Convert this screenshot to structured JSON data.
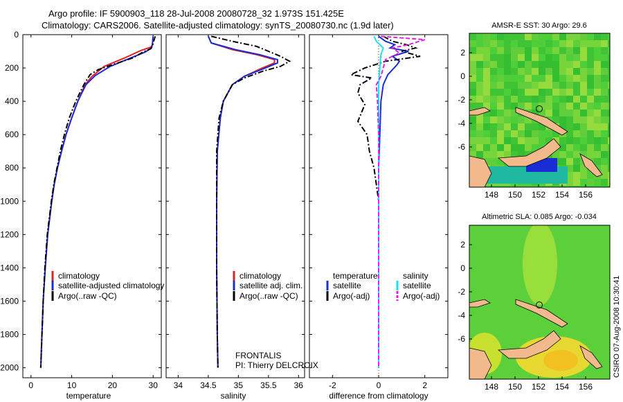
{
  "header": {
    "line1": "Argo profile: IF 5900903_118 28-Jul-2008 20080728_32 1.973S 151.425E",
    "line2": "Climatology: CARS2006. Satellite-adjusted climatology: synTS_20080730.nc (1.9d later)"
  },
  "footer": {
    "stamp": "CSIRO 07-Aug-2008 10:30:41"
  },
  "colors": {
    "climatology": "#e02020",
    "satellite": "#1a2cd6",
    "argo": "#000000",
    "sal_satellite": "#1ee0ee",
    "sal_argo": "#e020e0",
    "ocean": "#33cc33",
    "land": "#f2b98c"
  },
  "chart_data": [
    {
      "id": "temperature",
      "type": "line",
      "xlabel": "temperature",
      "ylabel": "",
      "xlim": [
        -2,
        32
      ],
      "ylim": [
        2060,
        0
      ],
      "xticks": [
        0,
        10,
        20,
        30
      ],
      "yticks": [
        0,
        200,
        400,
        600,
        800,
        1000,
        1200,
        1400,
        1600,
        1800,
        2000
      ],
      "series": [
        {
          "name": "climatology",
          "style": "solid",
          "color": "#e02020",
          "points": [
            [
              30,
              10
            ],
            [
              29.8,
              60
            ],
            [
              29.5,
              75
            ],
            [
              27,
              95
            ],
            [
              23,
              140
            ],
            [
              18,
              190
            ],
            [
              15,
              250
            ],
            [
              13.3,
              300
            ],
            [
              11.5,
              400
            ],
            [
              10,
              500
            ],
            [
              8.6,
              600
            ],
            [
              7.5,
              700
            ],
            [
              6.5,
              800
            ],
            [
              5.7,
              900
            ],
            [
              5.1,
              1000
            ],
            [
              4.1,
              1200
            ],
            [
              3.5,
              1400
            ],
            [
              3.0,
              1600
            ],
            [
              2.7,
              1800
            ],
            [
              2.4,
              2000
            ]
          ]
        },
        {
          "name": "satellite-adjusted climatology",
          "style": "solid",
          "color": "#1a2cd6",
          "points": [
            [
              30,
              10
            ],
            [
              29.8,
              60
            ],
            [
              29.6,
              80
            ],
            [
              28,
              105
            ],
            [
              24.5,
              140
            ],
            [
              19.5,
              190
            ],
            [
              15.8,
              245
            ],
            [
              13.5,
              300
            ],
            [
              11.5,
              400
            ],
            [
              10,
              500
            ],
            [
              8.6,
              600
            ],
            [
              7.5,
              700
            ],
            [
              6.5,
              800
            ],
            [
              5.7,
              900
            ],
            [
              5.1,
              1000
            ],
            [
              4.1,
              1200
            ],
            [
              3.5,
              1400
            ],
            [
              3.0,
              1600
            ],
            [
              2.7,
              1800
            ],
            [
              2.4,
              2000
            ]
          ]
        },
        {
          "name": "Argo(..raw -QC)",
          "style": "dashdot",
          "color": "#000000",
          "points": [
            [
              30.5,
              10
            ],
            [
              29.9,
              60
            ],
            [
              29.4,
              85
            ],
            [
              27.5,
              105
            ],
            [
              25,
              140
            ],
            [
              20,
              180
            ],
            [
              16.5,
              210
            ],
            [
              14.5,
              240
            ],
            [
              13,
              300
            ],
            [
              11,
              400
            ],
            [
              9.4,
              500
            ],
            [
              8.2,
              600
            ],
            [
              7.2,
              700
            ],
            [
              6.4,
              800
            ],
            [
              5.6,
              900
            ],
            [
              5.0,
              1000
            ],
            [
              4.0,
              1200
            ],
            [
              3.4,
              1400
            ],
            [
              3.0,
              1600
            ],
            [
              2.7,
              1800
            ],
            [
              2.4,
              2000
            ]
          ]
        }
      ],
      "legend": {
        "position": "lower-right",
        "labels": [
          "climatology",
          "satellite-adjusted climatology",
          "Argo(..raw -QC)"
        ]
      }
    },
    {
      "id": "salinity",
      "type": "line",
      "xlabel": "salinity",
      "xlim": [
        33.8,
        36.1
      ],
      "ylim": [
        2060,
        0
      ],
      "xticks": [
        34,
        34.5,
        35,
        35.5,
        36
      ],
      "series": [
        {
          "name": "climatology",
          "style": "solid",
          "color": "#e02020",
          "points": [
            [
              34.5,
              10
            ],
            [
              34.55,
              50
            ],
            [
              34.9,
              90
            ],
            [
              35.3,
              120
            ],
            [
              35.6,
              150
            ],
            [
              35.6,
              170
            ],
            [
              35.4,
              200
            ],
            [
              35.1,
              250
            ],
            [
              34.9,
              300
            ],
            [
              34.75,
              400
            ],
            [
              34.7,
              500
            ],
            [
              34.65,
              700
            ],
            [
              34.64,
              1000
            ],
            [
              34.64,
              1400
            ],
            [
              34.65,
              1800
            ],
            [
              34.66,
              2000
            ]
          ]
        },
        {
          "name": "satellite adj. clim.",
          "style": "solid",
          "color": "#1a2cd6",
          "points": [
            [
              34.5,
              10
            ],
            [
              34.55,
              50
            ],
            [
              34.95,
              90
            ],
            [
              35.35,
              120
            ],
            [
              35.65,
              150
            ],
            [
              35.65,
              170
            ],
            [
              35.45,
              200
            ],
            [
              35.1,
              250
            ],
            [
              34.9,
              300
            ],
            [
              34.75,
              400
            ],
            [
              34.7,
              500
            ],
            [
              34.65,
              700
            ],
            [
              34.64,
              1000
            ],
            [
              34.64,
              1400
            ],
            [
              34.65,
              1800
            ],
            [
              34.66,
              2000
            ]
          ]
        },
        {
          "name": "Argo(..raw -QC)",
          "style": "dashdot",
          "color": "#000000",
          "points": [
            [
              34.55,
              10
            ],
            [
              34.9,
              40
            ],
            [
              35.3,
              70
            ],
            [
              35.5,
              100
            ],
            [
              35.7,
              130
            ],
            [
              35.85,
              160
            ],
            [
              35.7,
              190
            ],
            [
              35.4,
              220
            ],
            [
              35.1,
              260
            ],
            [
              34.9,
              300
            ],
            [
              34.75,
              400
            ],
            [
              34.68,
              500
            ],
            [
              34.64,
              700
            ],
            [
              34.64,
              1000
            ],
            [
              34.64,
              1400
            ],
            [
              34.65,
              1800
            ],
            [
              34.66,
              2000
            ]
          ]
        }
      ],
      "legend": {
        "position": "lower-right",
        "labels": [
          "climatology",
          "satellite adj. clim.",
          "Argo(..raw -QC)"
        ]
      },
      "annotations": [
        "FRONTALIS",
        "PI: Thierry DELCROIX"
      ]
    },
    {
      "id": "difference",
      "type": "line",
      "xlabel": "difference from climatology",
      "xlim": [
        -3,
        3
      ],
      "ylim": [
        2060,
        0
      ],
      "xticks": [
        -2,
        0,
        2
      ],
      "series": [
        {
          "name": "temperature satellite",
          "style": "solid",
          "color": "#1a2cd6",
          "points": [
            [
              0,
              10
            ],
            [
              0.3,
              40
            ],
            [
              0.7,
              60
            ],
            [
              0.5,
              80
            ],
            [
              1.3,
              100
            ],
            [
              0.6,
              130
            ],
            [
              0.9,
              160
            ],
            [
              0.8,
              180
            ],
            [
              0.4,
              240
            ],
            [
              0.2,
              300
            ],
            [
              0.1,
              400
            ],
            [
              0.05,
              600
            ],
            [
              0,
              800
            ],
            [
              0,
              1000
            ],
            [
              0,
              1400
            ],
            [
              0,
              2000
            ]
          ]
        },
        {
          "name": "temperature Argo(-adj)",
          "style": "dashdot",
          "color": "#000000",
          "points": [
            [
              0.2,
              10
            ],
            [
              0.6,
              40
            ],
            [
              1.2,
              60
            ],
            [
              1.6,
              80
            ],
            [
              1.0,
              100
            ],
            [
              1.8,
              130
            ],
            [
              0.3,
              160
            ],
            [
              -0.6,
              200
            ],
            [
              -1.2,
              240
            ],
            [
              -0.3,
              260
            ],
            [
              -0.8,
              300
            ],
            [
              -0.9,
              350
            ],
            [
              -0.6,
              420
            ],
            [
              -0.9,
              520
            ],
            [
              -0.5,
              600
            ],
            [
              -0.4,
              700
            ],
            [
              -0.2,
              800
            ],
            [
              -0.1,
              900
            ],
            [
              0,
              1000
            ],
            [
              0,
              1400
            ],
            [
              0,
              2000
            ]
          ]
        },
        {
          "name": "salinity satellite",
          "style": "solid",
          "color": "#1ee0ee",
          "points": [
            [
              -0.2,
              10
            ],
            [
              -0.1,
              40
            ],
            [
              0.2,
              80
            ],
            [
              0.1,
              120
            ],
            [
              0.05,
              200
            ],
            [
              0,
              300
            ],
            [
              0,
              500
            ],
            [
              0,
              1000
            ],
            [
              0,
              1400
            ],
            [
              0,
              2000
            ]
          ]
        },
        {
          "name": "salinity Argo(-adj)",
          "style": "dashed",
          "color": "#e020e0",
          "points": [
            [
              0.1,
              10
            ],
            [
              2.0,
              30
            ],
            [
              1.3,
              60
            ],
            [
              0.6,
              80
            ],
            [
              0.9,
              110
            ],
            [
              0.3,
              150
            ],
            [
              0.1,
              250
            ],
            [
              -0.1,
              300
            ],
            [
              -0.05,
              400
            ],
            [
              0,
              600
            ],
            [
              0,
              1000
            ],
            [
              0,
              1400
            ],
            [
              0,
              2000
            ]
          ]
        }
      ],
      "legend": {
        "position": "lower",
        "labels": [
          "temperature",
          "satellite",
          "Argo(-adj)",
          "salinity",
          "satellite",
          "Argo(-adj)"
        ]
      }
    }
  ],
  "maps": [
    {
      "id": "sst",
      "title": "AMSR-E SST: 30 Argo: 29.6",
      "xticks": [
        "148",
        "150",
        "152",
        "154",
        "156"
      ],
      "yticks": [
        "2",
        "0",
        "-2",
        "-4",
        "-6"
      ]
    },
    {
      "id": "sla",
      "title": "Altimetric SLA: 0.085 Argo: -0.034",
      "xticks": [
        "148",
        "150",
        "152",
        "154",
        "156"
      ],
      "yticks": [
        "2",
        "0",
        "-2",
        "-4",
        "-6"
      ]
    }
  ]
}
